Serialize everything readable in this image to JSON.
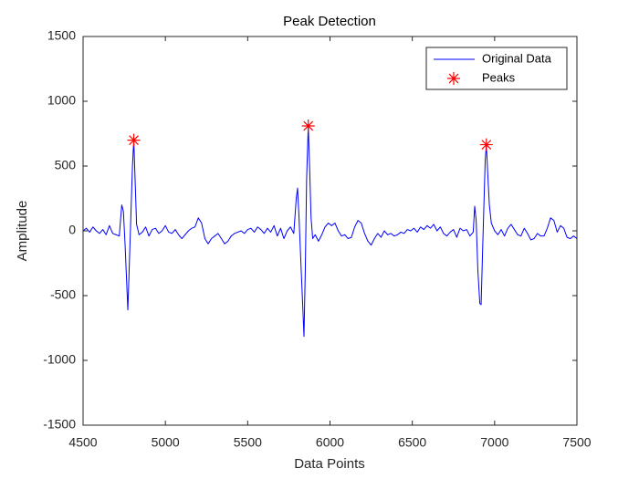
{
  "chart_data": {
    "type": "line",
    "title": "Peak Detection",
    "x_label": "Data Points",
    "y_label": "Amplitude",
    "xlim": [
      4500,
      7500
    ],
    "xticks": [
      4500,
      5000,
      5500,
      6000,
      6500,
      7000,
      7500
    ],
    "ylim": [
      -1500,
      1500
    ],
    "yticks": [
      -1500,
      -1000,
      -500,
      0,
      500,
      1000,
      1500
    ],
    "grid": false,
    "legend_position": "northeast",
    "series": [
      {
        "name": "Original Data",
        "color": "#0000ff",
        "mode": "line",
        "x": [
          4500,
          4520,
          4540,
          4560,
          4580,
          4600,
          4620,
          4640,
          4660,
          4680,
          4700,
          4720,
          4735,
          4745,
          4755,
          4765,
          4772,
          4780,
          4790,
          4800,
          4808,
          4816,
          4825,
          4840,
          4860,
          4880,
          4900,
          4920,
          4940,
          4960,
          4980,
          5000,
          5020,
          5040,
          5060,
          5080,
          5100,
          5120,
          5140,
          5160,
          5180,
          5200,
          5220,
          5240,
          5260,
          5280,
          5300,
          5320,
          5340,
          5360,
          5380,
          5400,
          5420,
          5440,
          5460,
          5480,
          5500,
          5520,
          5540,
          5560,
          5580,
          5600,
          5620,
          5640,
          5660,
          5680,
          5700,
          5720,
          5740,
          5760,
          5780,
          5795,
          5803,
          5812,
          5825,
          5835,
          5842,
          5850,
          5858,
          5868,
          5876,
          5885,
          5895,
          5910,
          5930,
          5950,
          5970,
          5990,
          6010,
          6030,
          6050,
          6070,
          6090,
          6110,
          6130,
          6150,
          6170,
          6190,
          6210,
          6230,
          6250,
          6270,
          6290,
          6310,
          6330,
          6350,
          6370,
          6390,
          6410,
          6430,
          6450,
          6470,
          6490,
          6510,
          6530,
          6550,
          6570,
          6590,
          6610,
          6630,
          6650,
          6670,
          6690,
          6710,
          6730,
          6750,
          6770,
          6790,
          6810,
          6830,
          6850,
          6870,
          6879,
          6888,
          6898,
          6910,
          6918,
          6926,
          6935,
          6943,
          6950,
          6958,
          6968,
          6980,
          7000,
          7020,
          7040,
          7060,
          7080,
          7100,
          7120,
          7140,
          7160,
          7180,
          7200,
          7220,
          7240,
          7260,
          7280,
          7300,
          7320,
          7340,
          7360,
          7380,
          7400,
          7420,
          7440,
          7460,
          7480,
          7500
        ],
        "values": [
          0,
          20,
          -10,
          30,
          0,
          -20,
          10,
          -30,
          40,
          -20,
          -30,
          -40,
          200,
          150,
          -100,
          -400,
          -610,
          -300,
          100,
          500,
          700,
          400,
          50,
          -30,
          -10,
          30,
          -40,
          10,
          20,
          -20,
          0,
          40,
          -10,
          -20,
          10,
          -30,
          -60,
          -30,
          0,
          20,
          30,
          100,
          60,
          -60,
          -100,
          -60,
          -40,
          -20,
          -60,
          -100,
          -80,
          -40,
          -20,
          -10,
          0,
          -20,
          10,
          20,
          -10,
          30,
          10,
          -20,
          20,
          -10,
          40,
          -40,
          20,
          -60,
          0,
          30,
          -20,
          250,
          330,
          100,
          -300,
          -600,
          -815,
          -300,
          400,
          810,
          500,
          100,
          -60,
          -30,
          -80,
          -30,
          30,
          60,
          40,
          60,
          0,
          -40,
          -30,
          -60,
          -50,
          30,
          80,
          60,
          -20,
          -80,
          -110,
          -60,
          -20,
          -50,
          0,
          -30,
          -20,
          -40,
          -30,
          -10,
          -20,
          10,
          0,
          20,
          -10,
          30,
          10,
          40,
          20,
          50,
          0,
          30,
          -20,
          -40,
          -10,
          10,
          -50,
          20,
          0,
          10,
          -40,
          -10,
          190,
          80,
          -300,
          -560,
          -570,
          -200,
          200,
          550,
          665,
          450,
          200,
          60,
          0,
          -30,
          10,
          -40,
          20,
          50,
          10,
          -30,
          -40,
          20,
          -20,
          -70,
          -60,
          -20,
          -40,
          -40,
          20,
          100,
          80,
          -10,
          40,
          20,
          -50,
          -60,
          -40,
          -60
        ]
      },
      {
        "name": "Peaks",
        "color": "#ff0000",
        "mode": "markers",
        "marker": "asterisk",
        "x": [
          4808,
          5868,
          6950
        ],
        "values": [
          700,
          810,
          665
        ]
      }
    ]
  }
}
